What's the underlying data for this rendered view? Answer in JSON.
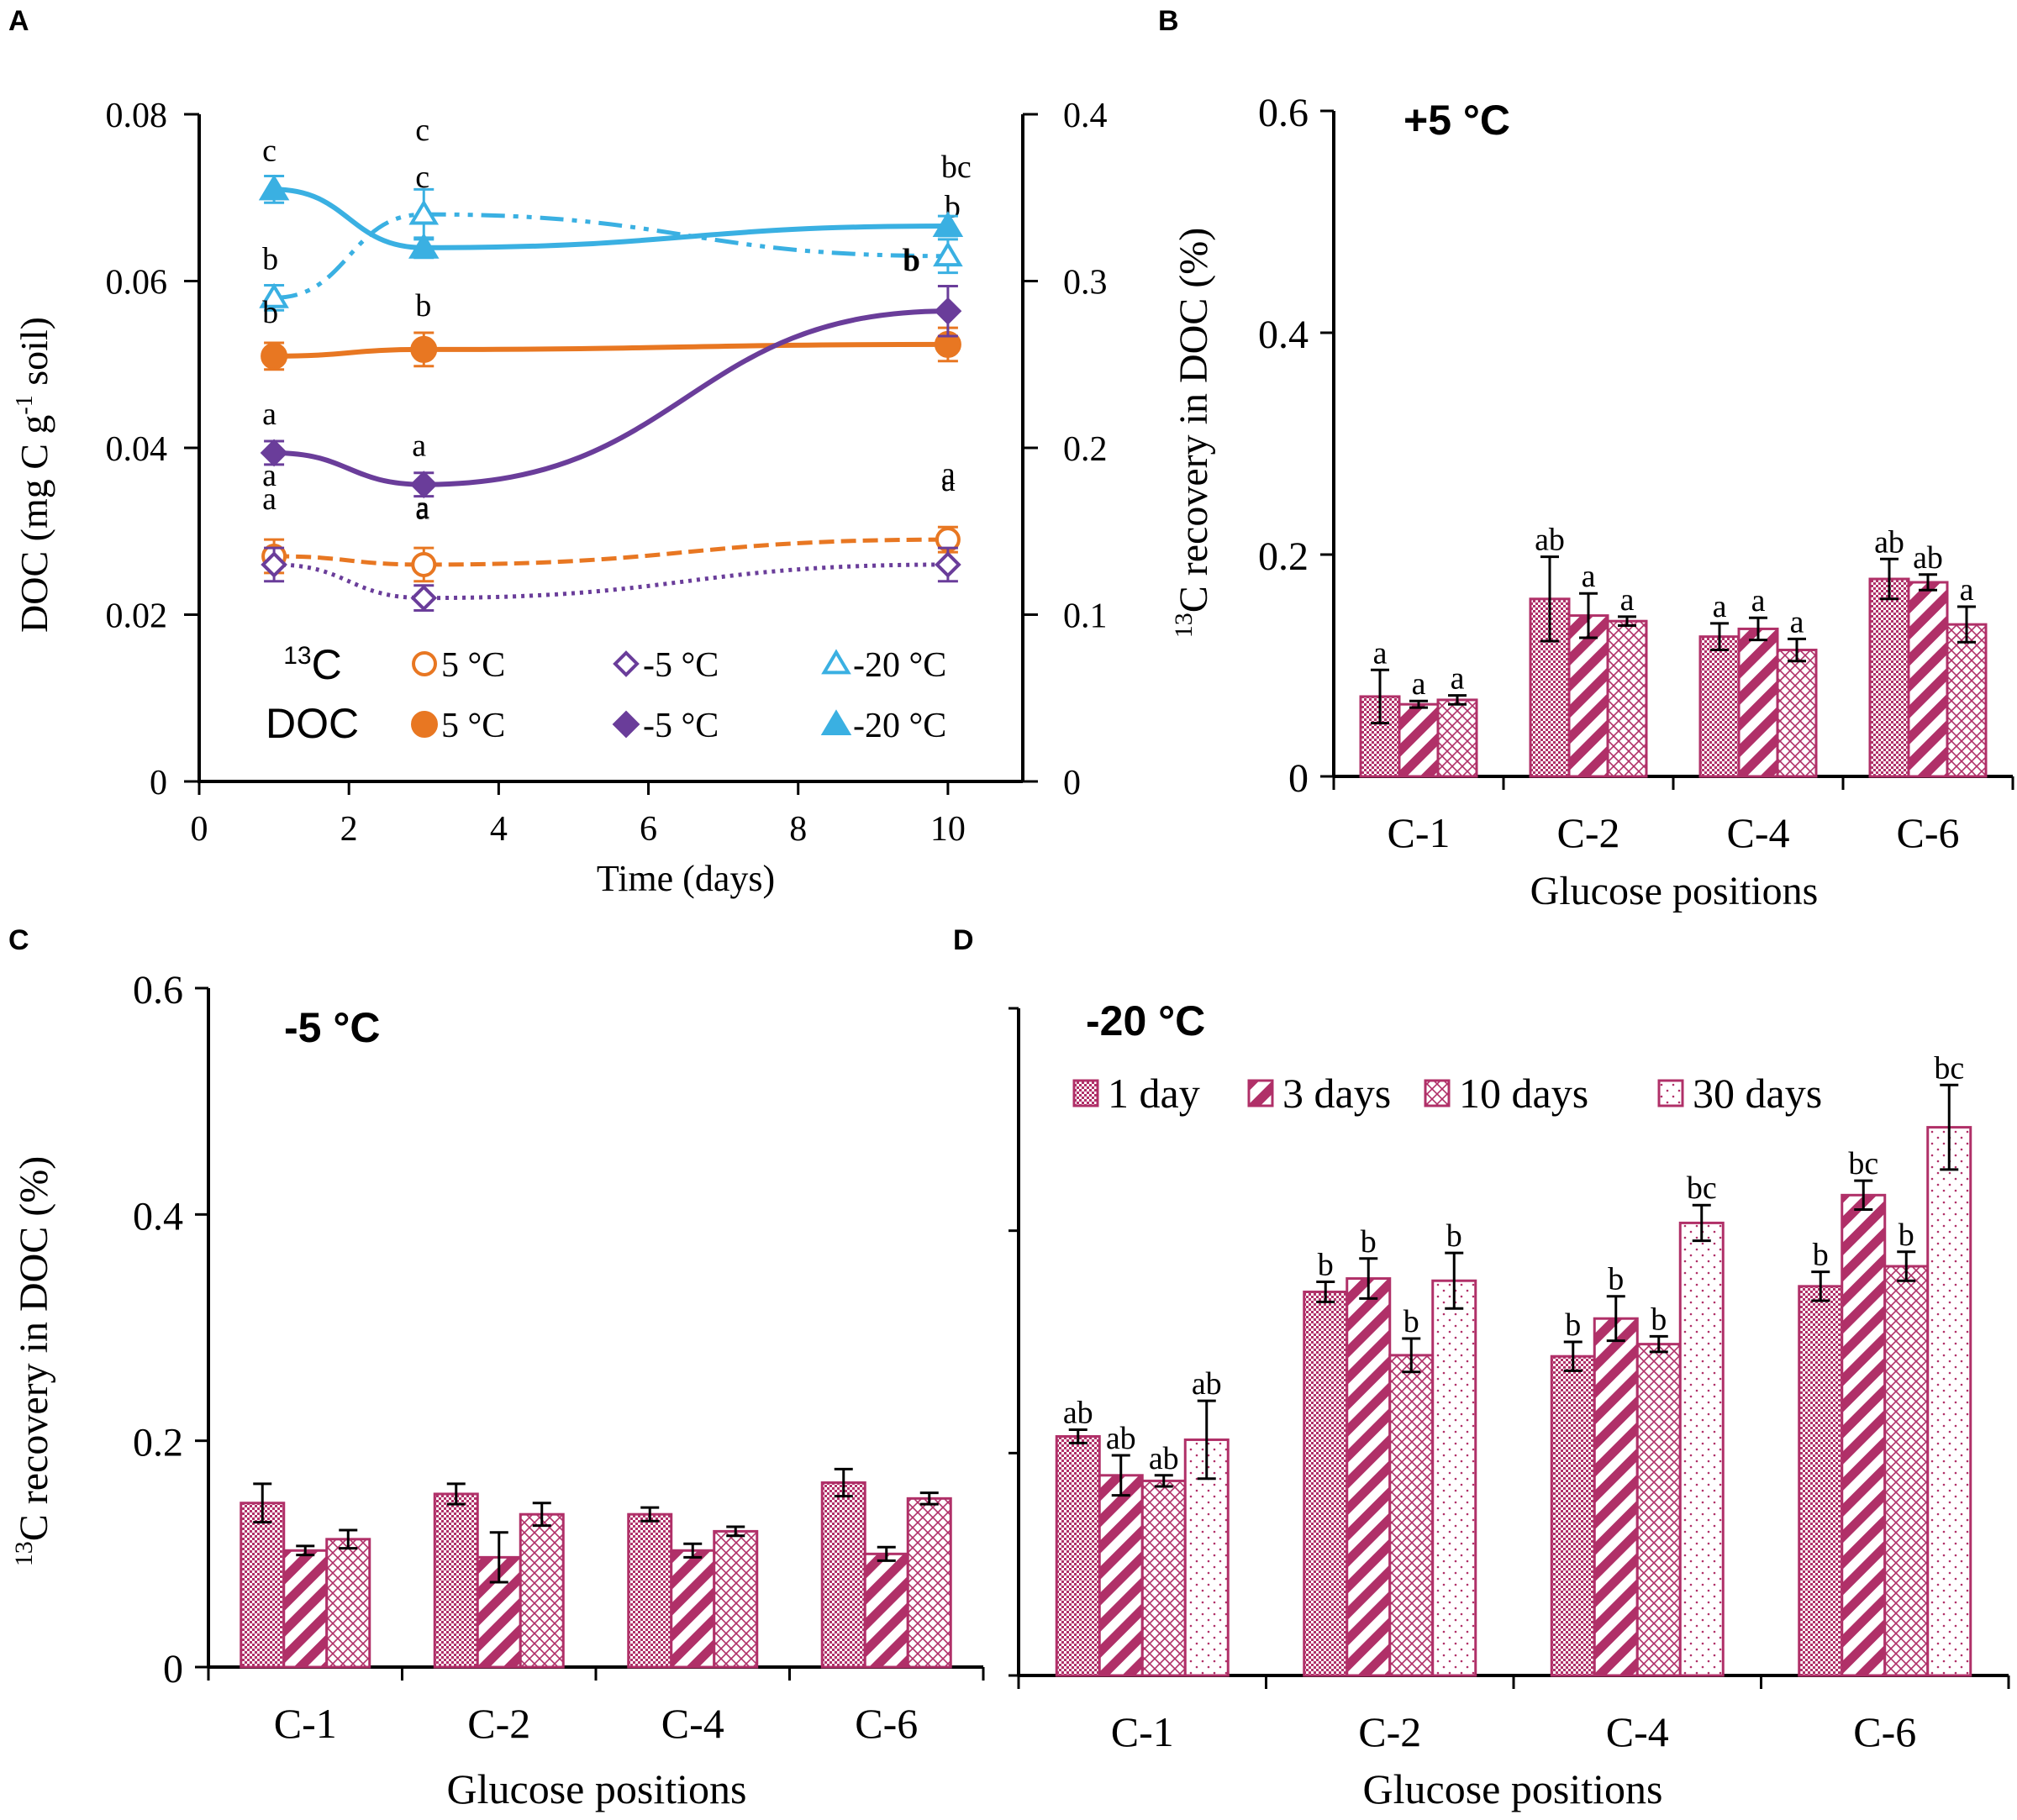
{
  "colors": {
    "orange": "#e87722",
    "purple": "#6a3d9a",
    "cyan": "#3ab0e2",
    "bar": "#b03068",
    "axis": "#000000"
  },
  "chart_data": [
    {
      "id": "A",
      "type": "line",
      "panel_label": "A",
      "xlabel": "Time  (days)",
      "ylabel": "DOC (mg C g-1 soil)",
      "ylabel_parts": [
        "DOC (mg C g",
        "-1",
        " soil)"
      ],
      "xlim": [
        0,
        11
      ],
      "ylim": [
        0,
        0.08
      ],
      "y2lim": [
        0,
        0.4
      ],
      "x_ticks": [
        "0",
        "2",
        "4",
        "6",
        "8",
        "10"
      ],
      "y_ticks": [
        "0",
        "0.02",
        "0.04",
        "0.06",
        "0.08"
      ],
      "y2_ticks": [
        "0",
        "0.1",
        "0.2",
        "0.3",
        "0.4"
      ],
      "legend": {
        "row1_label": "13C",
        "row1_label_parts": [
          "13",
          "C"
        ],
        "row2_label": "DOC",
        "entries": [
          "5 °C",
          "-5 °C",
          "-20 °C"
        ]
      },
      "series": [
        {
          "name": "13C 5 °C",
          "axis": "left",
          "marker": "open-circle",
          "color": "orange",
          "x": [
            1,
            3,
            10
          ],
          "y": [
            0.027,
            0.026,
            0.029
          ],
          "err": [
            0.002,
            0.002,
            0.0015
          ],
          "letters": [
            "a",
            "a",
            "a"
          ]
        },
        {
          "name": "13C -5 °C",
          "axis": "left",
          "marker": "open-diamond",
          "color": "purple",
          "x": [
            1,
            3,
            10
          ],
          "y": [
            0.026,
            0.022,
            0.026
          ],
          "err": [
            0.002,
            0.0015,
            0.002
          ],
          "letters": [
            "a",
            "a",
            "a"
          ]
        },
        {
          "name": "13C -20 °C",
          "axis": "left",
          "marker": "open-triangle",
          "color": "cyan",
          "x": [
            1,
            3,
            10
          ],
          "y": [
            0.058,
            0.068,
            0.063
          ],
          "err": [
            0.0015,
            0.003,
            0.002
          ],
          "letters": [
            "b",
            "c",
            "b"
          ]
        },
        {
          "name": "DOC 5 °C",
          "axis": "right",
          "marker": "filled-circle",
          "color": "orange",
          "x": [
            1,
            3,
            10
          ],
          "y": [
            0.255,
            0.259,
            0.262
          ],
          "err": [
            0.008,
            0.01,
            0.01
          ],
          "letters": [
            "b",
            "b",
            "b"
          ]
        },
        {
          "name": "DOC -5 °C",
          "axis": "right",
          "marker": "filled-diamond",
          "color": "purple",
          "x": [
            1,
            3,
            10
          ],
          "y": [
            0.197,
            0.178,
            0.282
          ],
          "err": [
            0.007,
            0.007,
            0.015
          ],
          "letters": [
            "a",
            "a",
            "b"
          ]
        },
        {
          "name": "DOC -20 °C",
          "axis": "right",
          "marker": "filled-triangle",
          "color": "cyan",
          "x": [
            1,
            3,
            10
          ],
          "y": [
            0.355,
            0.32,
            0.333
          ],
          "err": [
            0.008,
            0.006,
            0.006
          ],
          "letters": [
            "c",
            "c",
            "bc"
          ]
        }
      ]
    },
    {
      "id": "B",
      "type": "bar",
      "panel_label": "B",
      "title": "+5 °C",
      "xlabel": "Glucose positions",
      "ylabel": "13C recovery in DOC (%)",
      "ylabel_parts": [
        "13",
        "C recovery in DOC (%)"
      ],
      "ylim": [
        0,
        0.6
      ],
      "y_ticks": [
        "0",
        "0.2",
        "0.4",
        "0.6"
      ],
      "categories": [
        "C-1",
        "C-2",
        "C-4",
        "C-6"
      ],
      "series": [
        {
          "name": "1 day",
          "pattern": "dots",
          "values": [
            0.072,
            0.16,
            0.126,
            0.178
          ],
          "err": [
            0.024,
            0.038,
            0.012,
            0.018
          ],
          "letters": [
            "a",
            "ab",
            "a",
            "ab"
          ]
        },
        {
          "name": "3 days",
          "pattern": "diagonal",
          "values": [
            0.065,
            0.145,
            0.133,
            0.175
          ],
          "err": [
            0.003,
            0.02,
            0.01,
            0.007
          ],
          "letters": [
            "a",
            "a",
            "a",
            "ab"
          ]
        },
        {
          "name": "10 days",
          "pattern": "crosshatch",
          "values": [
            0.069,
            0.14,
            0.114,
            0.137
          ],
          "err": [
            0.004,
            0.004,
            0.01,
            0.016
          ],
          "letters": [
            "a",
            "a",
            "a",
            "a"
          ]
        }
      ]
    },
    {
      "id": "C",
      "type": "bar",
      "panel_label": "C",
      "title": "-5 °C",
      "xlabel": "Glucose  positions",
      "ylabel": "13C recovery in DOC (%)",
      "ylabel_parts": [
        "13",
        "C recovery in DOC (%)"
      ],
      "ylim": [
        0,
        0.6
      ],
      "y_ticks": [
        "0",
        "0.2",
        "0.4",
        "0.6"
      ],
      "categories": [
        "C-1",
        "C-2",
        "C-4",
        "C-6"
      ],
      "series": [
        {
          "name": "1 day",
          "pattern": "dots",
          "values": [
            0.145,
            0.153,
            0.135,
            0.163
          ],
          "err": [
            0.017,
            0.009,
            0.006,
            0.012
          ],
          "letters": []
        },
        {
          "name": "3 days",
          "pattern": "diagonal",
          "values": [
            0.103,
            0.097,
            0.103,
            0.1
          ],
          "err": [
            0.004,
            0.022,
            0.006,
            0.006
          ],
          "letters": []
        },
        {
          "name": "10 days",
          "pattern": "crosshatch",
          "values": [
            0.113,
            0.135,
            0.12,
            0.149
          ],
          "err": [
            0.008,
            0.01,
            0.004,
            0.005
          ],
          "letters": []
        }
      ]
    },
    {
      "id": "D",
      "type": "bar",
      "panel_label": "D",
      "title": "-20 °C",
      "xlabel": "Glucose positions",
      "ylabel": "",
      "ylim": [
        0,
        0.6
      ],
      "y_ticks": [],
      "categories": [
        "C-1",
        "C-2",
        "C-4",
        "C-6"
      ],
      "legend": [
        "1 day",
        "3 days",
        "10 days",
        "30 days"
      ],
      "series": [
        {
          "name": "1 day",
          "pattern": "dots",
          "values": [
            0.215,
            0.345,
            0.287,
            0.35
          ],
          "err": [
            0.006,
            0.009,
            0.013,
            0.013
          ],
          "letters": [
            "ab",
            "b",
            "b",
            "b"
          ]
        },
        {
          "name": "3 days",
          "pattern": "diagonal",
          "values": [
            0.18,
            0.357,
            0.321,
            0.432
          ],
          "err": [
            0.018,
            0.018,
            0.02,
            0.013
          ],
          "letters": [
            "ab",
            "b",
            "b",
            "bc"
          ]
        },
        {
          "name": "10 days",
          "pattern": "crosshatch",
          "values": [
            0.175,
            0.288,
            0.298,
            0.368
          ],
          "err": [
            0.005,
            0.015,
            0.007,
            0.013
          ],
          "letters": [
            "ab",
            "b",
            "b",
            "b"
          ]
        },
        {
          "name": "30 days",
          "pattern": "sparse",
          "values": [
            0.212,
            0.355,
            0.407,
            0.493
          ],
          "err": [
            0.035,
            0.025,
            0.016,
            0.038
          ],
          "letters": [
            "ab",
            "b",
            "bc",
            "bc"
          ]
        }
      ]
    }
  ]
}
